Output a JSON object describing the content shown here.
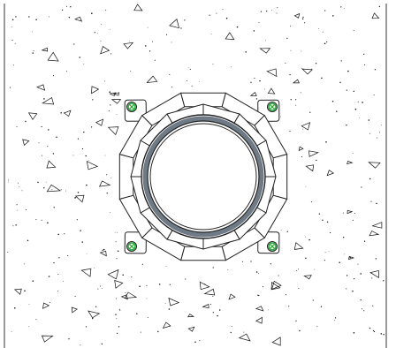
{
  "drawing": {
    "subject": "manhole-frame-plan",
    "background_color": "#ffffff",
    "concrete_hatch": {
      "pattern": "aggregate-triangles-and-dots",
      "stroke_color": "#111111"
    },
    "frame": {
      "segment_count": 12,
      "layers": 2,
      "stroke_color": "#222222",
      "fill_color": "#ffffff"
    },
    "seal_ring": {
      "color": "#6e7a86"
    },
    "anchor_bolts": {
      "count": 4,
      "mark_color": "#22aa33",
      "plate_color": "#ffffff"
    }
  }
}
